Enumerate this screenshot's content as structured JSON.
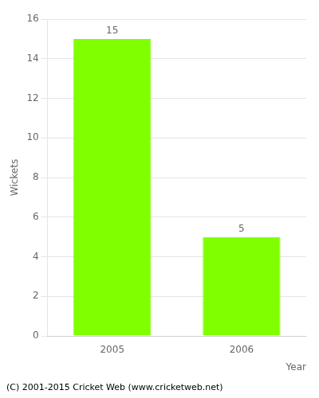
{
  "chart_data": {
    "type": "bar",
    "categories": [
      "2005",
      "2006"
    ],
    "values": [
      15,
      5
    ],
    "color": "#7FFF00",
    "xlabel": "Year",
    "ylabel": "Wickets",
    "ylim": [
      0,
      16
    ],
    "yticks": [
      0,
      2,
      4,
      6,
      8,
      10,
      12,
      14,
      16
    ],
    "grid": true,
    "data_labels": true,
    "annotation": "(C) 2001-2015 Cricket Web (www.cricketweb.net)"
  }
}
